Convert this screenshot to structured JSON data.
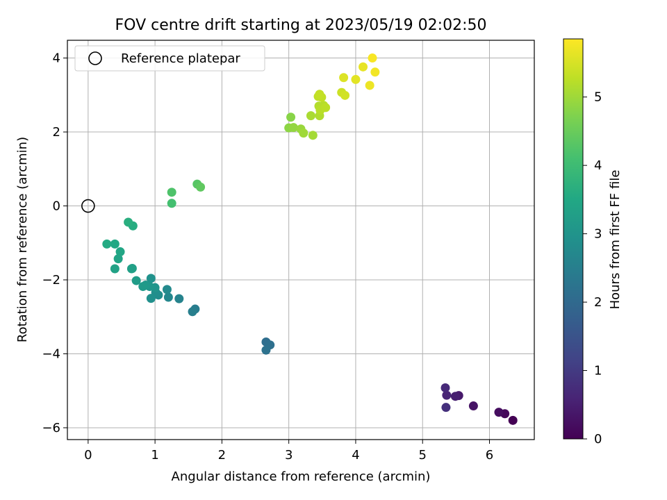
{
  "chart_data": {
    "type": "scatter",
    "title": "FOV centre drift starting at 2023/05/19 02:02:50",
    "xlabel": "Angular distance from reference (arcmin)",
    "ylabel": "Rotation from reference (arcmin)",
    "xlim": [
      -0.31,
      6.67
    ],
    "ylim": [
      -6.32,
      4.48
    ],
    "grid": true,
    "x_ticks": [
      0,
      1,
      2,
      3,
      4,
      5,
      6
    ],
    "y_ticks": [
      -6,
      -4,
      -2,
      0,
      2,
      4
    ],
    "x_tick_labels": [
      "0",
      "1",
      "2",
      "3",
      "4",
      "5",
      "6"
    ],
    "y_tick_labels": [
      "−6",
      "−4",
      "−2",
      "0",
      "2",
      "4"
    ],
    "legend": {
      "placement": "top-left",
      "entries": [
        {
          "label": "Reference platepar",
          "marker": "hollow-circle",
          "color": "#000000"
        }
      ]
    },
    "reference": {
      "x": 0.0,
      "y": 0.0
    },
    "colorbar": {
      "label": "Hours from first FF file",
      "colormap": "viridis",
      "range": [
        0,
        5.85
      ],
      "ticks": [
        0,
        1,
        2,
        3,
        4,
        5
      ],
      "tick_labels": [
        "0",
        "1",
        "2",
        "3",
        "4",
        "5"
      ]
    },
    "points": [
      {
        "x": 6.35,
        "y": -5.8,
        "c": 0.0
      },
      {
        "x": 6.23,
        "y": -5.62,
        "c": 0.1
      },
      {
        "x": 6.14,
        "y": -5.58,
        "c": 0.2
      },
      {
        "x": 5.76,
        "y": -5.41,
        "c": 0.3
      },
      {
        "x": 5.54,
        "y": -5.13,
        "c": 0.4
      },
      {
        "x": 5.49,
        "y": -5.15,
        "c": 0.5
      },
      {
        "x": 5.36,
        "y": -5.12,
        "c": 0.6
      },
      {
        "x": 5.34,
        "y": -4.92,
        "c": 0.7
      },
      {
        "x": 5.35,
        "y": -5.45,
        "c": 0.8
      },
      {
        "x": 2.66,
        "y": -3.68,
        "c": 2.1
      },
      {
        "x": 2.72,
        "y": -3.76,
        "c": 2.15
      },
      {
        "x": 2.66,
        "y": -3.9,
        "c": 2.2
      },
      {
        "x": 1.6,
        "y": -2.79,
        "c": 2.45
      },
      {
        "x": 1.56,
        "y": -2.86,
        "c": 2.5
      },
      {
        "x": 1.36,
        "y": -2.51,
        "c": 2.6
      },
      {
        "x": 1.2,
        "y": -2.47,
        "c": 2.7
      },
      {
        "x": 1.18,
        "y": -2.26,
        "c": 2.75
      },
      {
        "x": 1.05,
        "y": -2.41,
        "c": 2.8
      },
      {
        "x": 1.01,
        "y": -2.34,
        "c": 2.85
      },
      {
        "x": 0.94,
        "y": -2.5,
        "c": 2.9
      },
      {
        "x": 0.94,
        "y": -1.96,
        "c": 2.95
      },
      {
        "x": 1.0,
        "y": -2.21,
        "c": 3.0
      },
      {
        "x": 0.92,
        "y": -2.18,
        "c": 3.05
      },
      {
        "x": 0.86,
        "y": -2.14,
        "c": 3.1
      },
      {
        "x": 0.82,
        "y": -2.18,
        "c": 3.15
      },
      {
        "x": 0.72,
        "y": -2.02,
        "c": 3.2
      },
      {
        "x": 0.66,
        "y": -1.69,
        "c": 3.25
      },
      {
        "x": 0.65,
        "y": -1.7,
        "c": 3.3
      },
      {
        "x": 0.4,
        "y": -1.7,
        "c": 3.35
      },
      {
        "x": 0.45,
        "y": -1.43,
        "c": 3.4
      },
      {
        "x": 0.48,
        "y": -1.24,
        "c": 3.45
      },
      {
        "x": 0.4,
        "y": -1.03,
        "c": 3.5
      },
      {
        "x": 0.28,
        "y": -1.03,
        "c": 3.55
      },
      {
        "x": 0.67,
        "y": -0.54,
        "c": 3.6
      },
      {
        "x": 0.6,
        "y": -0.44,
        "c": 3.65
      },
      {
        "x": 1.25,
        "y": 0.07,
        "c": 4.1
      },
      {
        "x": 1.25,
        "y": 0.37,
        "c": 4.2
      },
      {
        "x": 1.63,
        "y": 0.59,
        "c": 4.3
      },
      {
        "x": 1.68,
        "y": 0.51,
        "c": 4.4
      },
      {
        "x": 3.03,
        "y": 2.4,
        "c": 4.8
      },
      {
        "x": 3.0,
        "y": 2.11,
        "c": 4.85
      },
      {
        "x": 3.07,
        "y": 2.12,
        "c": 4.9
      },
      {
        "x": 3.18,
        "y": 2.08,
        "c": 4.95
      },
      {
        "x": 3.22,
        "y": 1.97,
        "c": 5.0
      },
      {
        "x": 3.36,
        "y": 1.91,
        "c": 5.05
      },
      {
        "x": 3.33,
        "y": 2.44,
        "c": 5.1
      },
      {
        "x": 3.46,
        "y": 2.44,
        "c": 5.15
      },
      {
        "x": 3.45,
        "y": 2.7,
        "c": 5.18
      },
      {
        "x": 3.52,
        "y": 2.72,
        "c": 5.2
      },
      {
        "x": 3.47,
        "y": 2.59,
        "c": 5.22
      },
      {
        "x": 3.55,
        "y": 2.66,
        "c": 5.25
      },
      {
        "x": 3.44,
        "y": 2.96,
        "c": 5.28
      },
      {
        "x": 3.49,
        "y": 2.94,
        "c": 5.3
      },
      {
        "x": 3.46,
        "y": 3.02,
        "c": 5.32
      },
      {
        "x": 3.79,
        "y": 3.07,
        "c": 5.4
      },
      {
        "x": 3.84,
        "y": 2.99,
        "c": 5.45
      },
      {
        "x": 3.82,
        "y": 3.47,
        "c": 5.55
      },
      {
        "x": 4.0,
        "y": 3.42,
        "c": 5.6
      },
      {
        "x": 4.11,
        "y": 3.76,
        "c": 5.65
      },
      {
        "x": 4.21,
        "y": 3.26,
        "c": 5.7
      },
      {
        "x": 4.29,
        "y": 3.62,
        "c": 5.75
      },
      {
        "x": 4.25,
        "y": 4.0,
        "c": 5.8
      }
    ]
  }
}
